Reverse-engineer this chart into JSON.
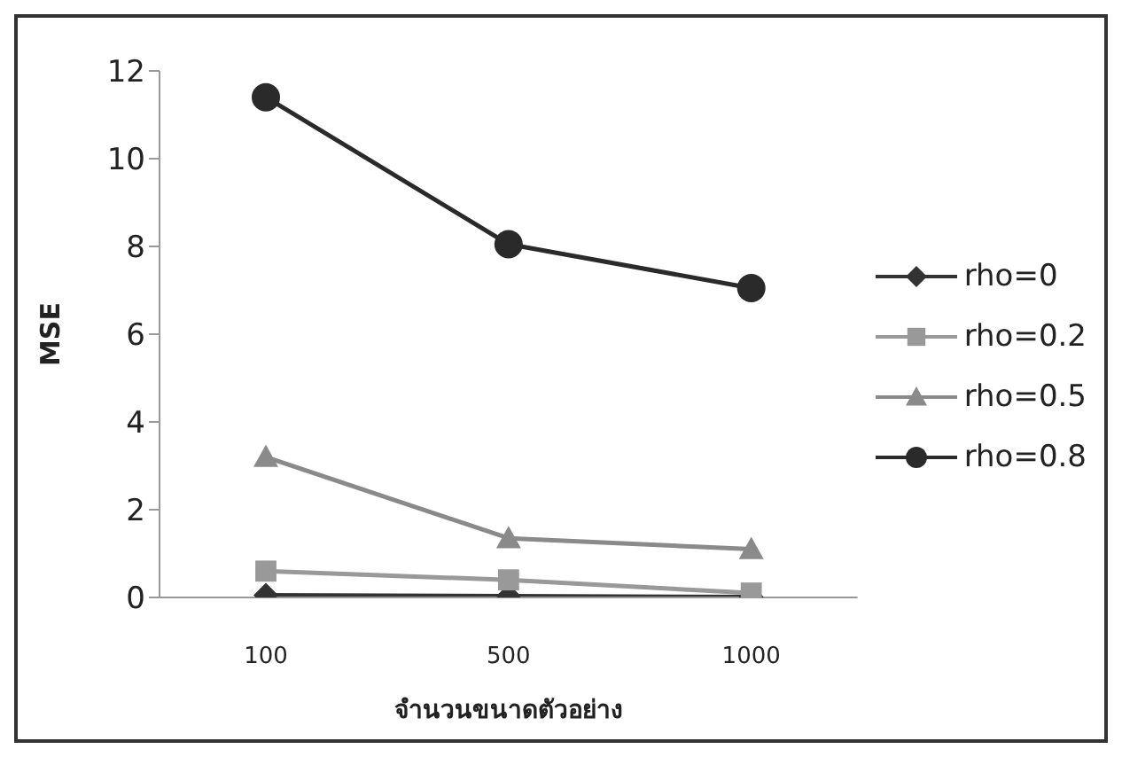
{
  "chart_data": {
    "type": "line",
    "xlabel": "จำนวนขนาดตัวอย่าง",
    "ylabel": "MSE",
    "categories": [
      "100",
      "500",
      "1000"
    ],
    "ylim": [
      0,
      12
    ],
    "yticks": [
      0,
      2,
      4,
      6,
      8,
      10,
      12
    ],
    "grid": false,
    "legend": "right",
    "line_style": "solid",
    "series": [
      {
        "name": "rho=0",
        "color": "#333333",
        "marker": "diamond",
        "values": [
          0.05,
          0.03,
          0.01
        ]
      },
      {
        "name": "rho=0.2",
        "color": "#999999",
        "marker": "square",
        "values": [
          0.6,
          0.4,
          0.1
        ]
      },
      {
        "name": "rho=0.5",
        "color": "#8a8a8a",
        "marker": "triangle",
        "values": [
          3.2,
          1.35,
          1.1
        ]
      },
      {
        "name": "rho=0.8",
        "color": "#2a2a2a",
        "marker": "circle",
        "values": [
          11.4,
          8.05,
          7.05
        ]
      }
    ]
  }
}
